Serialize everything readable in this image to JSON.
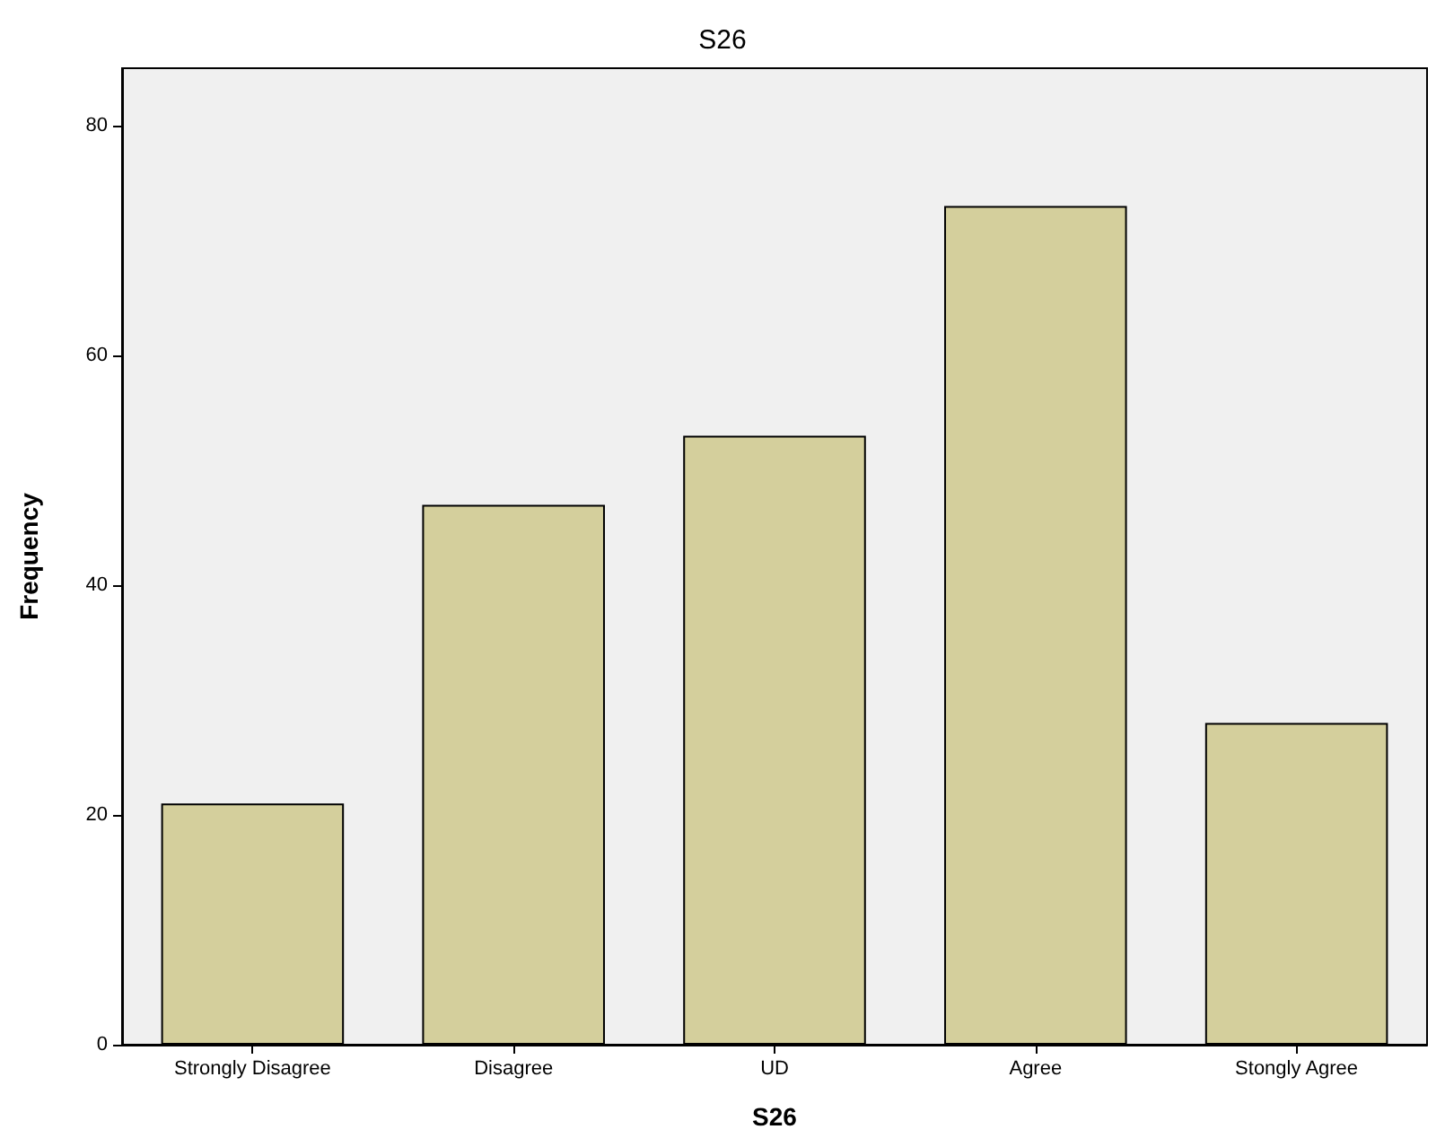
{
  "chart_data": {
    "type": "bar",
    "title": "S26",
    "xlabel": "S26",
    "ylabel": "Frequency",
    "categories": [
      "Strongly Disagree",
      "Disagree",
      "UD",
      "Agree",
      "Stongly Agree"
    ],
    "values": [
      21,
      47,
      53,
      73,
      28
    ],
    "color": "#d4cf9c",
    "ylim": [
      0,
      85
    ],
    "yticks": [
      0,
      20,
      40,
      60,
      80
    ],
    "grid": false
  }
}
